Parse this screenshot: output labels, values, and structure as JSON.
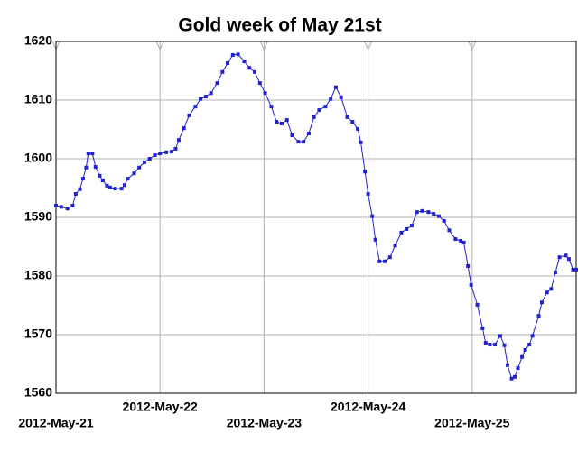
{
  "chart_data": {
    "type": "line",
    "title": "Gold week of May 21st",
    "x": [
      0.0,
      0.05,
      0.11,
      0.16,
      0.19,
      0.23,
      0.26,
      0.29,
      0.31,
      0.35,
      0.38,
      0.42,
      0.45,
      0.49,
      0.52,
      0.57,
      0.63,
      0.66,
      0.69,
      0.75,
      0.8,
      0.85,
      0.9,
      0.95,
      1.0,
      1.06,
      1.11,
      1.15,
      1.18,
      1.23,
      1.28,
      1.34,
      1.39,
      1.44,
      1.49,
      1.55,
      1.6,
      1.65,
      1.7,
      1.75,
      1.81,
      1.86,
      1.91,
      1.96,
      2.01,
      2.07,
      2.12,
      2.17,
      2.22,
      2.27,
      2.33,
      2.38,
      2.43,
      2.48,
      2.53,
      2.59,
      2.64,
      2.69,
      2.74,
      2.8,
      2.85,
      2.9,
      2.93,
      2.97,
      3.0,
      3.04,
      3.07,
      3.11,
      3.16,
      3.21,
      3.26,
      3.32,
      3.37,
      3.42,
      3.47,
      3.52,
      3.58,
      3.63,
      3.68,
      3.73,
      3.78,
      3.84,
      3.89,
      3.92,
      3.96,
      3.99,
      4.05,
      4.1,
      4.13,
      4.17,
      4.22,
      4.27,
      4.31,
      4.34,
      4.38,
      4.41,
      4.44,
      4.48,
      4.51,
      4.55,
      4.58,
      4.64,
      4.67,
      4.72,
      4.76,
      4.8,
      4.84,
      4.9,
      4.93,
      4.97,
      5.0
    ],
    "series": [
      {
        "color": "#2222cc",
        "values": [
          1592.0,
          1591.8,
          1591.5,
          1592.0,
          1594.0,
          1594.8,
          1596.6,
          1598.5,
          1600.9,
          1600.9,
          1598.6,
          1597.1,
          1596.3,
          1595.4,
          1595.1,
          1594.9,
          1594.9,
          1595.5,
          1596.6,
          1597.5,
          1598.5,
          1599.4,
          1600.0,
          1600.6,
          1600.9,
          1601.1,
          1601.2,
          1601.7,
          1603.2,
          1605.2,
          1607.4,
          1608.9,
          1610.2,
          1610.6,
          1611.2,
          1612.9,
          1614.8,
          1616.3,
          1617.7,
          1617.8,
          1616.6,
          1615.5,
          1614.8,
          1612.9,
          1611.2,
          1608.9,
          1606.3,
          1606.0,
          1606.6,
          1604.0,
          1602.9,
          1602.9,
          1604.3,
          1607.1,
          1608.3,
          1608.9,
          1610.2,
          1612.2,
          1610.5,
          1607.1,
          1606.3,
          1605.1,
          1602.8,
          1597.8,
          1594.0,
          1590.2,
          1586.2,
          1582.5,
          1582.5,
          1583.2,
          1585.2,
          1587.4,
          1588.0,
          1588.6,
          1590.9,
          1591.1,
          1590.9,
          1590.6,
          1590.2,
          1589.4,
          1587.8,
          1586.3,
          1586.0,
          1585.7,
          1581.7,
          1578.5,
          1575.1,
          1571.1,
          1568.6,
          1568.3,
          1568.3,
          1569.8,
          1568.2,
          1564.8,
          1562.5,
          1562.8,
          1564.3,
          1566.2,
          1567.4,
          1568.3,
          1569.8,
          1573.2,
          1575.5,
          1577.2,
          1577.8,
          1580.6,
          1583.2,
          1583.5,
          1582.9,
          1581.1,
          1581.1
        ]
      }
    ],
    "xlim": [
      0,
      5
    ],
    "xticks": [
      {
        "value": 0,
        "label": "2012-May-21"
      },
      {
        "value": 1,
        "label": "2012-May-22"
      },
      {
        "value": 2,
        "label": "2012-May-23"
      },
      {
        "value": 3,
        "label": "2012-May-24"
      },
      {
        "value": 4,
        "label": "2012-May-25"
      }
    ],
    "ylim": [
      1560,
      1620
    ],
    "yticks": [
      1560,
      1570,
      1580,
      1590,
      1600,
      1610,
      1620
    ],
    "grid": true
  }
}
